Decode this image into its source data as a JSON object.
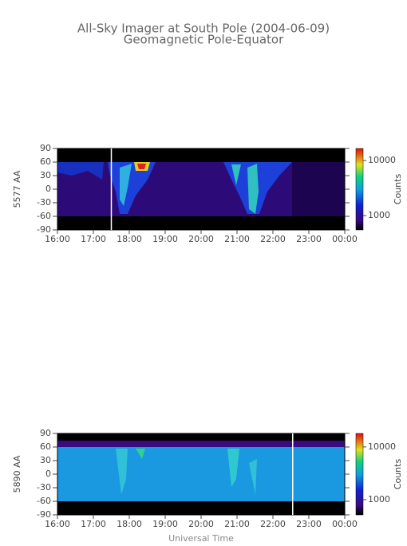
{
  "title": "All-Sky Imager at South Pole (2004-06-09)",
  "subtitle": "Geomagnetic Pole-Equator",
  "chart_data": [
    {
      "type": "heatmap",
      "ylabel": "5577 AA",
      "xlim": [
        16,
        24
      ],
      "xticks": [
        {
          "value": 16,
          "label": "16:00"
        },
        {
          "value": 17,
          "label": "17:00"
        },
        {
          "value": 18,
          "label": "18:00"
        },
        {
          "value": 19,
          "label": "19:00"
        },
        {
          "value": 20,
          "label": "20:00"
        },
        {
          "value": 21,
          "label": "21:00"
        },
        {
          "value": 22,
          "label": "22:00"
        },
        {
          "value": 23,
          "label": "23:00"
        },
        {
          "value": 24,
          "label": "00:00"
        }
      ],
      "ylim": [
        -90,
        90
      ],
      "yticks": [
        -90,
        -60,
        -30,
        0,
        30,
        60,
        90
      ],
      "marker_x": 17.5,
      "colorbar": {
        "label": "Counts",
        "scale": "log",
        "lim": [
          550,
          16600
        ],
        "ticks": [
          1000,
          10000
        ]
      }
    },
    {
      "type": "heatmap",
      "ylabel": "5890 AA",
      "xlabel": "Universal Time",
      "xlim": [
        16,
        24
      ],
      "xticks": [
        {
          "value": 16,
          "label": "16:00"
        },
        {
          "value": 17,
          "label": "17:00"
        },
        {
          "value": 18,
          "label": "18:00"
        },
        {
          "value": 19,
          "label": "19:00"
        },
        {
          "value": 20,
          "label": "20:00"
        },
        {
          "value": 21,
          "label": "21:00"
        },
        {
          "value": 22,
          "label": "22:00"
        },
        {
          "value": 23,
          "label": "23:00"
        },
        {
          "value": 24,
          "label": "00:00"
        }
      ],
      "ylim": [
        -90,
        90
      ],
      "yticks": [
        -90,
        -60,
        -30,
        0,
        30,
        60,
        90
      ],
      "marker_x": 22.55,
      "colorbar": {
        "label": "Counts",
        "scale": "log",
        "lim": [
          515,
          18000
        ],
        "ticks": [
          1000,
          10000
        ]
      }
    }
  ]
}
